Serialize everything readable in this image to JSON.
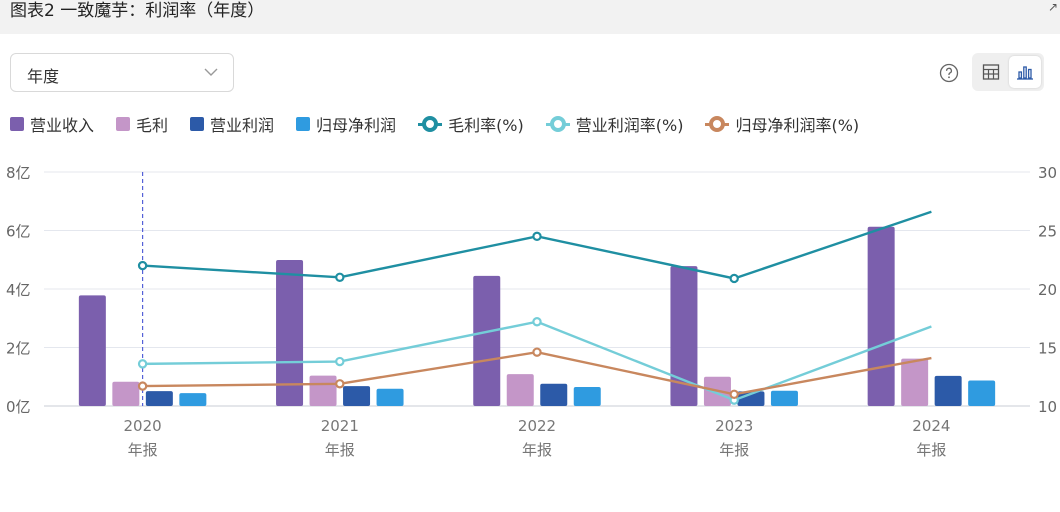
{
  "header": {
    "title": "图表2 一致魔芋：利润率（年度）",
    "corner_glyph": "↗"
  },
  "period_select": {
    "value": "年度"
  },
  "icons": {
    "help": "help-circle-icon",
    "table": "table-icon",
    "bar": "bar-chart-icon"
  },
  "legend": [
    {
      "label": "营业收入",
      "color": "#7b5fad",
      "kind": "bar"
    },
    {
      "label": "毛利",
      "color": "#c496c8",
      "kind": "bar"
    },
    {
      "label": "营业利润",
      "color": "#2c5aa8",
      "kind": "bar"
    },
    {
      "label": "归母净利润",
      "color": "#2f9be0",
      "kind": "bar"
    },
    {
      "label": "毛利率(%)",
      "color": "#1f8fa2",
      "kind": "line"
    },
    {
      "label": "营业利润率(%)",
      "color": "#74cdd8",
      "kind": "line"
    },
    {
      "label": "归母净利润率(%)",
      "color": "#c8875e",
      "kind": "line"
    }
  ],
  "chart_data": {
    "type": "bar",
    "categories": [
      "2020",
      "2021",
      "2022",
      "2023",
      "2024"
    ],
    "category_sublabel": "年报",
    "y_left": {
      "ticks": [
        "0亿",
        "2亿",
        "4亿",
        "6亿",
        "8亿"
      ],
      "min": 0,
      "max": 8
    },
    "y_right": {
      "ticks": [
        "10",
        "15",
        "20",
        "25",
        "30"
      ],
      "min": 10,
      "max": 30
    },
    "bar_series": [
      {
        "name": "营业收入",
        "color": "#7b5fad",
        "values": [
          3.78,
          4.99,
          4.45,
          4.78,
          6.13
        ]
      },
      {
        "name": "毛利",
        "color": "#c496c8",
        "values": [
          0.83,
          1.04,
          1.09,
          1.0,
          1.62
        ]
      },
      {
        "name": "营业利润",
        "color": "#2c5aa8",
        "values": [
          0.51,
          0.68,
          0.76,
          0.5,
          1.03
        ]
      },
      {
        "name": "归母净利润",
        "color": "#2f9be0",
        "values": [
          0.44,
          0.59,
          0.65,
          0.52,
          0.87
        ]
      }
    ],
    "line_series": [
      {
        "name": "毛利率(%)",
        "color": "#1f8fa2",
        "values": [
          22.0,
          21.0,
          24.5,
          20.9,
          26.6
        ]
      },
      {
        "name": "营业利润率(%)",
        "color": "#74cdd8",
        "values": [
          13.6,
          13.8,
          17.2,
          10.5,
          16.8
        ]
      },
      {
        "name": "归母净利润率(%)",
        "color": "#c8875e",
        "values": [
          11.7,
          11.9,
          14.6,
          11.0,
          14.1
        ]
      }
    ],
    "cursor_category": "2020",
    "grid": true
  }
}
